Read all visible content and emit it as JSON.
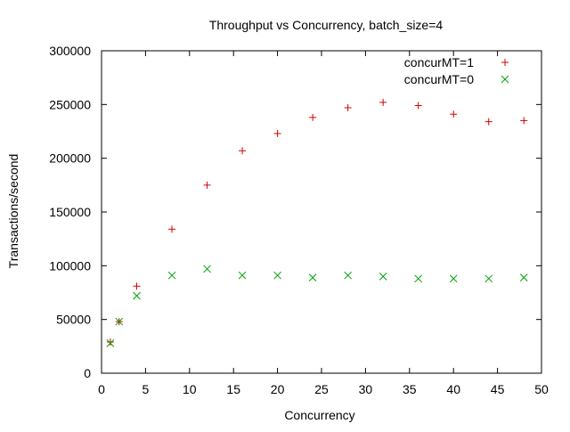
{
  "chart_data": {
    "type": "scatter",
    "title": "Throughput vs Concurrency, batch_size=4",
    "xlabel": "Concurrency",
    "ylabel": "Transactions/second",
    "xlim": [
      0,
      50
    ],
    "ylim": [
      0,
      300000
    ],
    "xticks": [
      0,
      5,
      10,
      15,
      20,
      25,
      30,
      35,
      40,
      45,
      50
    ],
    "yticks": [
      0,
      50000,
      100000,
      150000,
      200000,
      250000,
      300000
    ],
    "grid": false,
    "legend_position": "top-right",
    "series": [
      {
        "name": "concurMT=1",
        "marker": "plus",
        "color": "#d40000",
        "x": [
          1,
          2,
          4,
          8,
          12,
          16,
          20,
          24,
          28,
          32,
          36,
          40,
          44,
          48
        ],
        "y": [
          29000,
          48000,
          81000,
          134000,
          175000,
          207000,
          223000,
          238000,
          247000,
          252000,
          249000,
          241000,
          234000,
          235000
        ]
      },
      {
        "name": "concurMT=0",
        "marker": "cross",
        "color": "#00a000",
        "x": [
          1,
          2,
          4,
          8,
          12,
          16,
          20,
          24,
          28,
          32,
          36,
          40,
          44,
          48
        ],
        "y": [
          28000,
          48000,
          72000,
          91000,
          97000,
          91000,
          91000,
          89000,
          91000,
          90000,
          88000,
          88000,
          88000,
          89000
        ]
      }
    ]
  }
}
